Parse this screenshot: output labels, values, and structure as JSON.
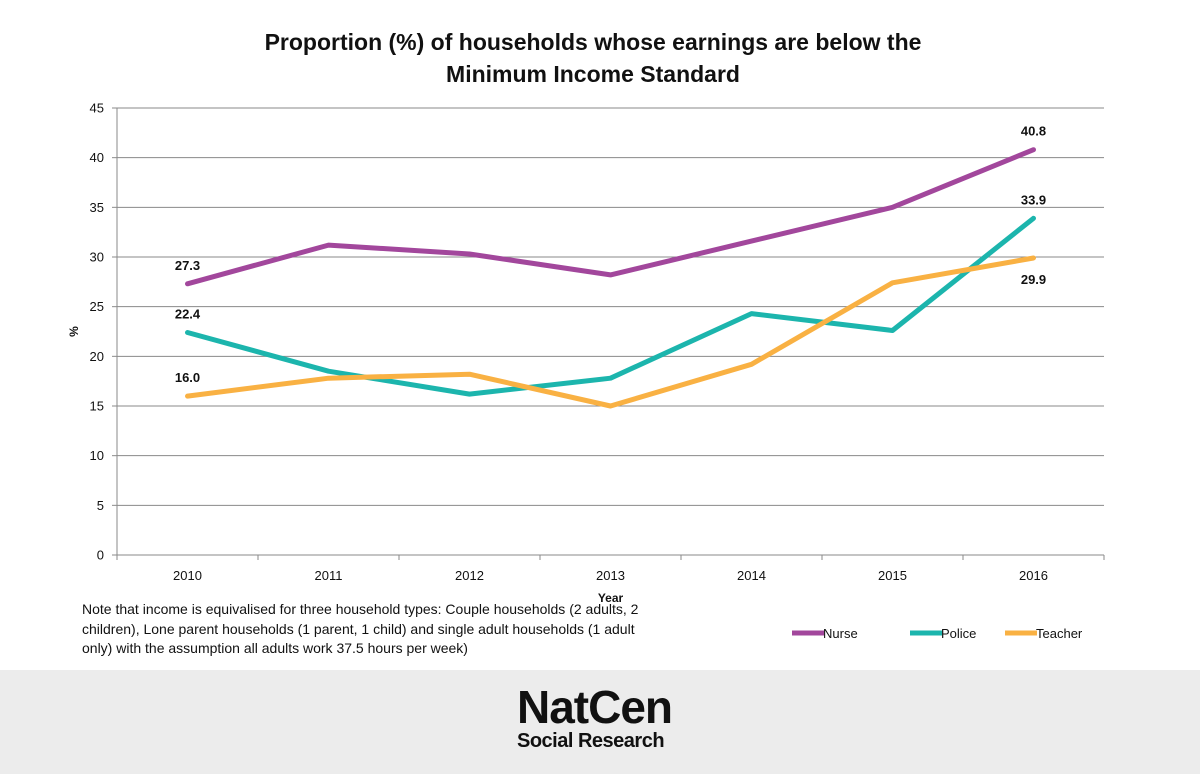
{
  "chart_data": {
    "type": "line",
    "title": "Proportion (%) of households whose earnings are below the Minimum Income Standard",
    "title_lines": [
      "Proportion (%) of households whose earnings are below the",
      "Minimum Income Standard"
    ],
    "xlabel": "Year",
    "ylabel": "%",
    "categories": [
      "2010",
      "2011",
      "2012",
      "2013",
      "2014",
      "2015",
      "2016"
    ],
    "ylim": [
      0,
      45
    ],
    "yticks": [
      0,
      5,
      10,
      15,
      20,
      25,
      30,
      35,
      40,
      45
    ],
    "grid": true,
    "legend_position": "bottom-right",
    "series": [
      {
        "name": "Nurse",
        "color": "#a2479c",
        "values": [
          27.3,
          31.2,
          30.3,
          28.2,
          31.6,
          35.0,
          40.8
        ]
      },
      {
        "name": "Police",
        "color": "#1cb5ad",
        "values": [
          22.4,
          18.5,
          16.2,
          17.8,
          24.3,
          22.6,
          33.9
        ]
      },
      {
        "name": "Teacher",
        "color": "#f9b143",
        "values": [
          16.0,
          17.8,
          18.2,
          15.0,
          19.2,
          27.4,
          29.9
        ]
      }
    ],
    "data_labels": [
      {
        "series": 0,
        "index": 0,
        "text": "27.3"
      },
      {
        "series": 0,
        "index": 6,
        "text": "40.8"
      },
      {
        "series": 1,
        "index": 0,
        "text": "22.4"
      },
      {
        "series": 1,
        "index": 6,
        "text": "33.9"
      },
      {
        "series": 2,
        "index": 0,
        "text": "16.0"
      },
      {
        "series": 2,
        "index": 6,
        "text": "29.9"
      }
    ]
  },
  "note": "Note that income is equivalised for three household types: Couple households (2 adults, 2 children), Lone parent households (1 parent, 1 child) and single adult households (1 adult only) with the assumption all adults work 37.5 hours per week)",
  "footer": {
    "logo_main": "NatCen",
    "logo_sub": "Social Research",
    "background": "#ececec"
  }
}
